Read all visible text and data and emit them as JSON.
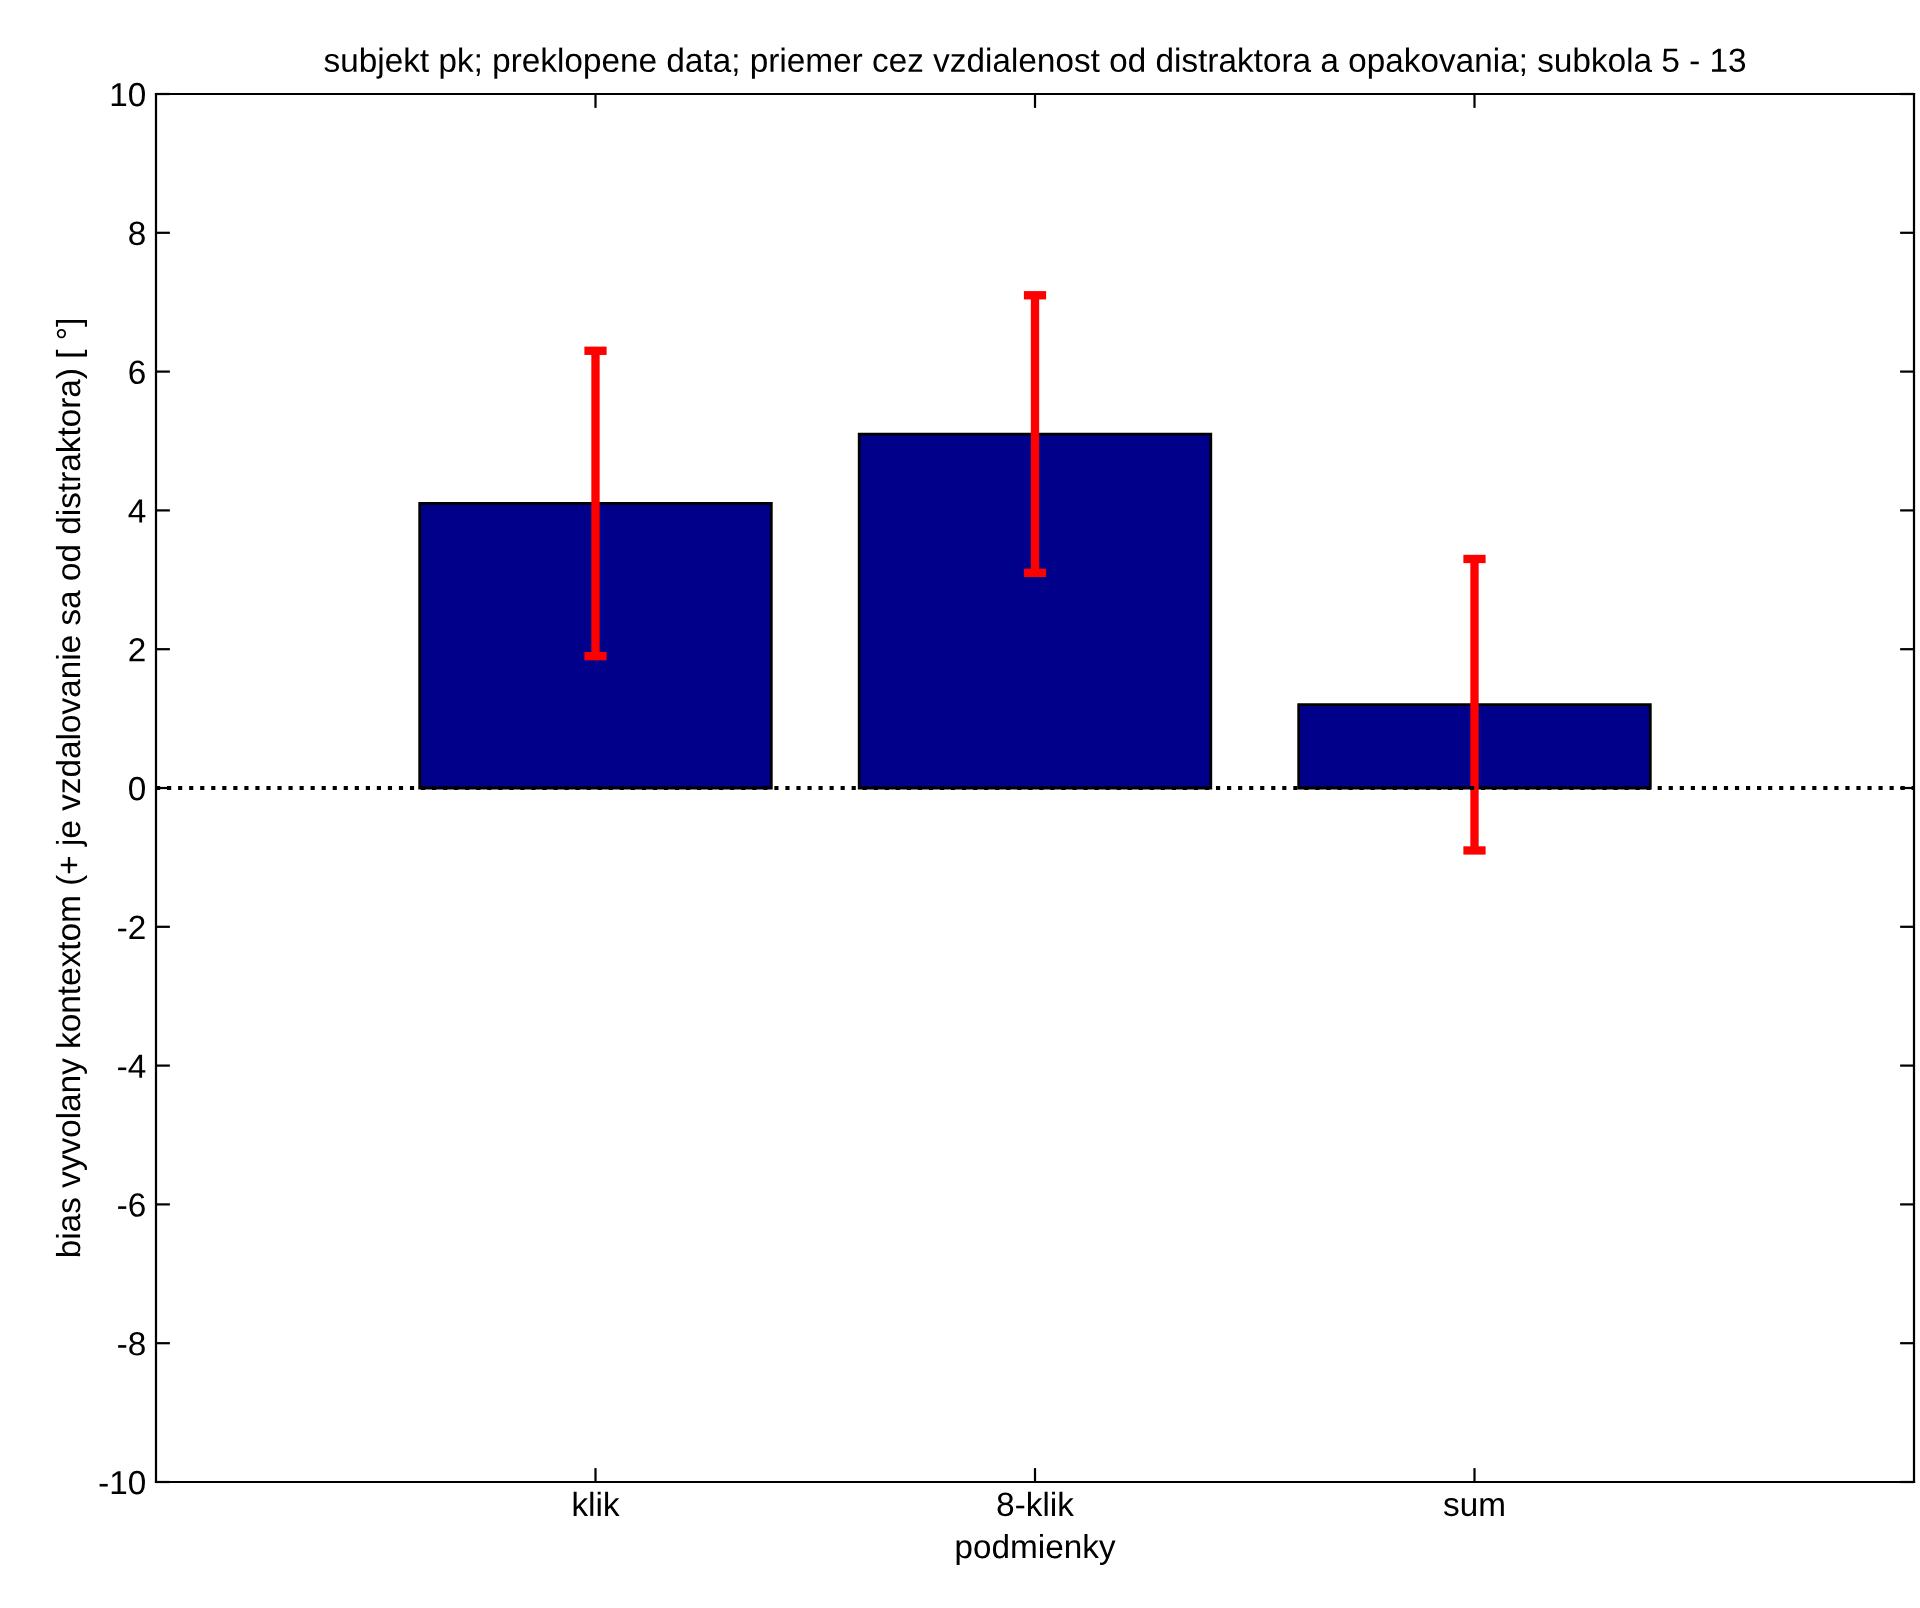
{
  "chart_data": {
    "type": "bar",
    "title": "subjekt pk; preklopene data; priemer cez vzdialenost od distraktora a opakovania; subkola 5 - 13",
    "xlabel": "podmienky",
    "ylabel": "bias vyvolany kontextom (+ je vzdalovanie sa od distraktora) [ °]",
    "categories": [
      "klik",
      "8-klik",
      "sum"
    ],
    "series": [
      {
        "color": "#00008b",
        "values": [
          4.1,
          5.1,
          1.2
        ],
        "errors": [
          2.2,
          2.0,
          2.1
        ]
      }
    ],
    "ylim": [
      -10,
      10
    ],
    "yticks": [
      -10,
      -8,
      -6,
      -4,
      -2,
      0,
      2,
      4,
      6,
      8,
      10
    ],
    "ref_lines": [
      {
        "axis": "y",
        "value": 0,
        "color": "#000000",
        "line_style": "dotted"
      }
    ],
    "grid": false,
    "legend": false
  }
}
